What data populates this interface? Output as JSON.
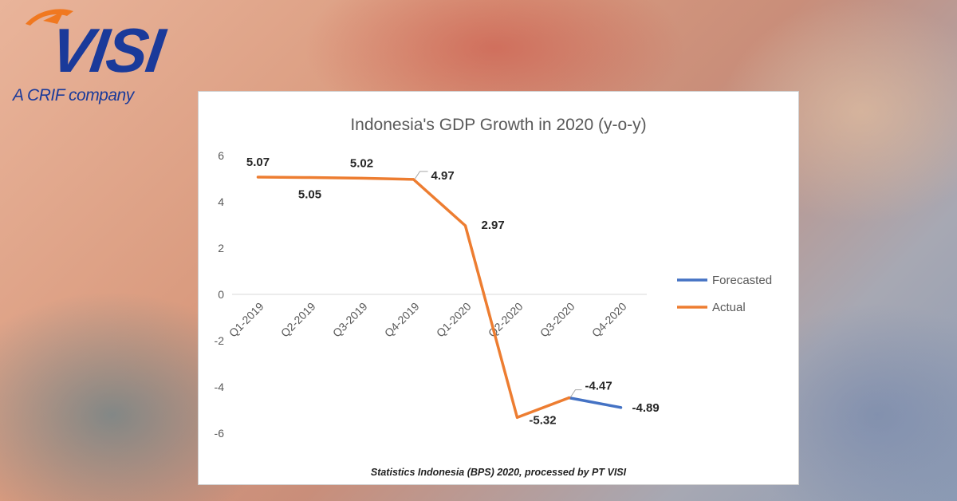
{
  "logo": {
    "brand": "VISI",
    "tagline": "A CRIF company"
  },
  "chart_data": {
    "type": "line",
    "title": "Indonesia's GDP Growth in 2020 (y-o-y)",
    "categories": [
      "Q1-2019",
      "Q2-2019",
      "Q3-2019",
      "Q4-2019",
      "Q1-2020",
      "Q2-2020",
      "Q3-2020",
      "Q4-2020"
    ],
    "y_ticks": [
      6,
      4,
      2,
      0,
      -2,
      -4,
      -6
    ],
    "ylim": [
      -6,
      6
    ],
    "grid": false,
    "legend_position": "right",
    "series": [
      {
        "name": "Forecasted",
        "color": "#4472c4",
        "values": [
          null,
          null,
          null,
          null,
          null,
          null,
          -4.47,
          -4.89
        ],
        "labels": [
          null,
          null,
          null,
          null,
          null,
          null,
          null,
          "-4.89"
        ]
      },
      {
        "name": "Actual",
        "color": "#ed7d31",
        "values": [
          5.07,
          5.05,
          5.02,
          4.97,
          2.97,
          -5.32,
          -4.47,
          null
        ],
        "labels": [
          "5.07",
          "5.05",
          "5.02",
          "4.97",
          "2.97",
          "-5.32",
          "-4.47",
          null
        ]
      }
    ]
  },
  "source_note": "Statistics Indonesia (BPS) 2020, processed by PT VISI"
}
